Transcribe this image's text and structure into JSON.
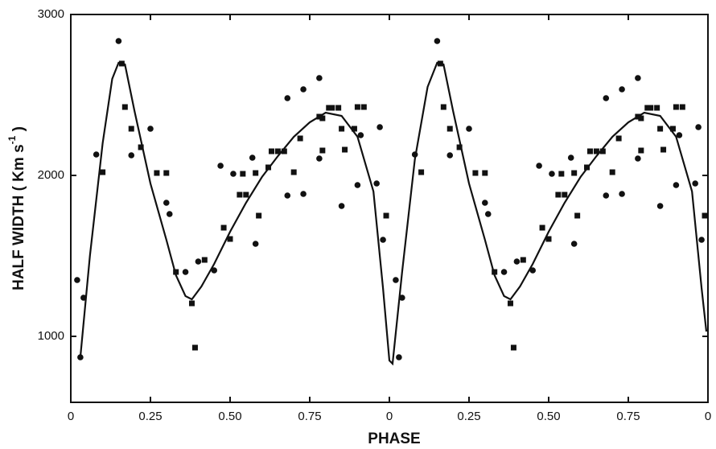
{
  "chart_data": {
    "type": "scatter",
    "x_label": "PHASE",
    "y_label": [
      "HALF WIDTH ( Km s",
      "-1",
      " )"
    ],
    "xlim": [
      0,
      2
    ],
    "ylim": [
      590,
      3000
    ],
    "xticks": [
      0,
      0.25,
      {
        "value": 0.5,
        "label": "0.50"
      },
      0.75,
      {
        "value": 1,
        "label": "0"
      },
      {
        "value": 1.25,
        "label": "0.25"
      },
      {
        "value": 1.5,
        "label": "0.50"
      },
      {
        "value": 1.75,
        "label": "0.75"
      },
      {
        "value": 2,
        "label": "0"
      }
    ],
    "yticks": [
      1000,
      2000,
      3000
    ],
    "series": [
      {
        "marker": "circle",
        "color": "#111",
        "x": [
          0.02,
          0.03,
          0.04,
          0.08,
          0.15,
          0.19,
          0.25,
          0.3,
          0.31,
          0.36,
          0.4,
          0.45,
          0.47,
          0.51,
          0.57,
          0.58,
          0.68,
          0.68,
          0.73,
          0.73,
          0.78,
          0.78,
          0.85,
          0.9,
          0.91,
          0.96,
          0.97,
          0.98,
          1.02,
          1.03,
          1.04,
          1.08,
          1.15,
          1.19,
          1.25,
          1.3,
          1.31,
          1.36,
          1.4,
          1.45,
          1.47,
          1.51,
          1.57,
          1.58,
          1.68,
          1.68,
          1.73,
          1.73,
          1.78,
          1.78,
          1.85,
          1.9,
          1.91,
          1.96,
          1.97,
          1.98
        ],
        "values": [
          1350,
          870,
          1240,
          2130,
          2835,
          2125,
          2290,
          1830,
          1760,
          1400,
          1465,
          1410,
          2060,
          2010,
          2110,
          1575,
          2480,
          1875,
          2535,
          1885,
          2605,
          2105,
          1810,
          1940,
          2250,
          1950,
          2300,
          1600,
          1350,
          870,
          1240,
          2130,
          2835,
          2125,
          2290,
          1830,
          1760,
          1400,
          1465,
          1410,
          2060,
          2010,
          2110,
          1575,
          2480,
          1875,
          2535,
          1885,
          2605,
          2105,
          1810,
          1940,
          2250,
          1950,
          2300,
          1600
        ]
      },
      {
        "marker": "square",
        "color": "#111",
        "x": [
          0.1,
          0.16,
          0.17,
          0.19,
          0.22,
          0.27,
          0.3,
          0.33,
          0.38,
          0.39,
          0.42,
          0.48,
          0.5,
          0.53,
          0.54,
          0.55,
          0.58,
          0.59,
          0.62,
          0.63,
          0.65,
          0.67,
          0.7,
          0.72,
          0.78,
          0.79,
          0.79,
          0.81,
          0.82,
          0.84,
          0.85,
          0.86,
          0.89,
          0.9,
          0.92,
          0.99,
          1.1,
          1.16,
          1.17,
          1.19,
          1.22,
          1.27,
          1.3,
          1.33,
          1.38,
          1.39,
          1.42,
          1.48,
          1.5,
          1.53,
          1.54,
          1.55,
          1.58,
          1.59,
          1.62,
          1.63,
          1.65,
          1.67,
          1.7,
          1.72,
          1.78,
          1.79,
          1.79,
          1.81,
          1.82,
          1.84,
          1.85,
          1.86,
          1.89,
          1.9,
          1.92,
          1.99
        ],
        "values": [
          2020,
          2695,
          2425,
          2290,
          2175,
          2015,
          2015,
          1400,
          1205,
          930,
          1475,
          1675,
          1605,
          1880,
          2010,
          1880,
          2015,
          1750,
          2050,
          2150,
          2150,
          2150,
          2020,
          2230,
          2365,
          2355,
          2155,
          2420,
          2420,
          2420,
          2290,
          2160,
          2290,
          2425,
          2425,
          1750,
          2020,
          2695,
          2425,
          2290,
          2175,
          2015,
          2015,
          1400,
          1205,
          930,
          1475,
          1675,
          1605,
          1880,
          2010,
          1880,
          2015,
          1750,
          2050,
          2150,
          2150,
          2150,
          2020,
          2230,
          2365,
          2355,
          2155,
          2420,
          2420,
          2420,
          2290,
          2160,
          2290,
          2425,
          2425,
          1750
        ]
      },
      {
        "marker": "line",
        "color": "#111",
        "x": [
          0.03,
          0.06,
          0.1,
          0.13,
          0.15,
          0.17,
          0.2,
          0.25,
          0.3,
          0.33,
          0.36,
          0.38,
          0.41,
          0.45,
          0.5,
          0.55,
          0.6,
          0.65,
          0.7,
          0.75,
          0.8,
          0.85,
          0.9,
          0.95,
          0.98,
          1.0,
          1.01,
          1.04,
          1.08,
          1.12,
          1.15,
          1.17,
          1.2,
          1.25,
          1.3,
          1.33,
          1.36,
          1.38,
          1.41,
          1.45,
          1.5,
          1.55,
          1.6,
          1.65,
          1.7,
          1.75,
          1.8,
          1.85,
          1.9,
          1.95,
          1.98,
          1.995
        ],
        "values": [
          870,
          1500,
          2200,
          2600,
          2700,
          2690,
          2400,
          1950,
          1600,
          1380,
          1250,
          1230,
          1310,
          1450,
          1650,
          1830,
          1990,
          2120,
          2240,
          2330,
          2390,
          2370,
          2240,
          1900,
          1300,
          850,
          830,
          1400,
          2100,
          2550,
          2700,
          2690,
          2400,
          1950,
          1600,
          1380,
          1250,
          1230,
          1310,
          1450,
          1650,
          1830,
          1990,
          2120,
          2240,
          2330,
          2390,
          2370,
          2240,
          1900,
          1300,
          1030
        ]
      }
    ]
  }
}
